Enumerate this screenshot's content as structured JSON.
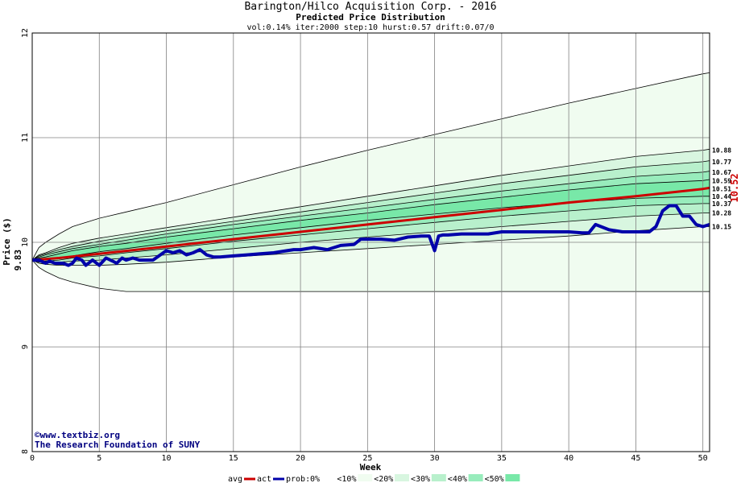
{
  "chart_data": {
    "type": "area",
    "title": "Barington/Hilco Acquisition Corp. - 2016",
    "subtitle": "Predicted Price Distribution",
    "params": "vol:0.14% iter:2000 step:10 hurst:0.57 drift:0.07/0",
    "xlabel": "Week",
    "ylabel": "Price ($)",
    "xlim": [
      0,
      50.5
    ],
    "ylim": [
      8,
      12
    ],
    "x_ticks": [
      0,
      5,
      10,
      15,
      20,
      25,
      30,
      35,
      40,
      45,
      50
    ],
    "y_ticks": [
      8,
      9,
      10,
      11,
      12
    ],
    "grid": true,
    "start_price": 9.83,
    "start_price_label": "9.83",
    "current_label": "10.52",
    "levels": [
      "10.88",
      "10.77",
      "10.67",
      "10.59",
      "10.51",
      "10.44",
      "10.37",
      "10.28",
      "10.15"
    ],
    "bands": {
      "x": [
        0,
        0.5,
        1,
        2,
        3,
        5,
        7,
        10,
        15,
        20,
        25,
        30,
        35,
        40,
        45,
        50,
        50.5
      ],
      "upper_outer": [
        9.83,
        9.95,
        10.0,
        10.08,
        10.15,
        10.23,
        10.29,
        10.38,
        10.55,
        10.72,
        10.88,
        11.03,
        11.18,
        11.33,
        11.47,
        11.61,
        11.62
      ],
      "lower_outer": [
        9.83,
        9.76,
        9.72,
        9.66,
        9.62,
        9.56,
        9.53,
        9.53,
        9.53,
        9.53,
        9.53,
        9.53,
        9.53,
        9.53,
        9.53,
        9.53,
        9.53
      ],
      "p10": [
        [
          9.83,
          9.88,
          9.9,
          9.95,
          9.99,
          10.04,
          10.08,
          10.14,
          10.24,
          10.34,
          10.44,
          10.54,
          10.64,
          10.73,
          10.82,
          10.88,
          10.89
        ],
        [
          9.83,
          9.8,
          9.79,
          9.78,
          9.78,
          9.78,
          9.79,
          9.81,
          9.86,
          9.9,
          9.94,
          9.98,
          10.02,
          10.06,
          10.11,
          10.15,
          10.15
        ]
      ],
      "p20": [
        [
          9.83,
          9.87,
          9.89,
          9.93,
          9.96,
          10.01,
          10.05,
          10.11,
          10.2,
          10.29,
          10.38,
          10.47,
          10.56,
          10.64,
          10.72,
          10.77,
          10.78
        ],
        [
          9.83,
          9.81,
          9.81,
          9.81,
          9.82,
          9.83,
          9.85,
          9.88,
          9.94,
          10.0,
          10.05,
          10.1,
          10.15,
          10.2,
          10.25,
          10.28,
          10.28
        ]
      ],
      "p30": [
        [
          9.83,
          9.86,
          9.88,
          9.91,
          9.94,
          9.98,
          10.02,
          10.08,
          10.17,
          10.25,
          10.33,
          10.41,
          10.49,
          10.56,
          10.63,
          10.67,
          10.68
        ],
        [
          9.83,
          9.82,
          9.82,
          9.83,
          9.85,
          9.87,
          9.9,
          9.94,
          10.01,
          10.07,
          10.13,
          10.19,
          10.25,
          10.3,
          10.35,
          10.37,
          10.37
        ]
      ],
      "p40": [
        [
          9.83,
          9.85,
          9.86,
          9.89,
          9.92,
          9.96,
          9.99,
          10.05,
          10.13,
          10.21,
          10.28,
          10.36,
          10.43,
          10.5,
          10.56,
          10.59,
          10.6
        ],
        [
          9.83,
          9.83,
          9.83,
          9.85,
          9.87,
          9.91,
          9.94,
          9.99,
          10.07,
          10.14,
          10.21,
          10.27,
          10.33,
          10.38,
          10.42,
          10.44,
          10.44
        ]
      ]
    },
    "series": [
      {
        "name": "avg",
        "color": "#cc0000",
        "x": [
          0,
          2,
          5,
          10,
          15,
          20,
          25,
          30,
          35,
          40,
          45,
          50,
          50.5
        ],
        "y": [
          9.83,
          9.85,
          9.89,
          9.96,
          10.03,
          10.1,
          10.17,
          10.24,
          10.31,
          10.38,
          10.44,
          10.51,
          10.52
        ]
      },
      {
        "name": "act",
        "color": "#0000aa",
        "x": [
          0,
          0.5,
          1,
          1.3,
          1.7,
          2,
          2.3,
          2.7,
          3,
          3.3,
          3.7,
          4,
          4.5,
          5,
          5.5,
          6,
          6.3,
          6.7,
          7,
          7.5,
          8,
          9,
          10,
          10.5,
          11,
          11.5,
          12,
          12.5,
          13,
          13.5,
          14,
          15,
          16,
          17,
          18,
          19,
          19.5,
          20,
          21,
          22,
          23,
          24,
          24.5,
          25,
          26,
          27,
          28,
          29,
          29.6,
          30,
          30.3,
          30.6,
          31,
          32,
          33,
          34,
          35,
          36,
          37,
          38,
          39,
          40,
          41,
          41.5,
          42,
          43,
          44,
          45,
          46,
          46.5,
          47,
          47.5,
          48,
          48.5,
          49,
          49.5,
          50,
          50.5
        ],
        "y": [
          9.83,
          9.83,
          9.8,
          9.82,
          9.8,
          9.8,
          9.8,
          9.78,
          9.8,
          9.85,
          9.83,
          9.78,
          9.83,
          9.78,
          9.85,
          9.82,
          9.8,
          9.85,
          9.83,
          9.85,
          9.83,
          9.83,
          9.92,
          9.9,
          9.92,
          9.88,
          9.9,
          9.93,
          9.88,
          9.86,
          9.86,
          9.87,
          9.88,
          9.89,
          9.9,
          9.92,
          9.93,
          9.93,
          9.95,
          9.93,
          9.97,
          9.98,
          10.03,
          10.03,
          10.03,
          10.02,
          10.05,
          10.06,
          10.06,
          9.92,
          10.06,
          10.07,
          10.07,
          10.08,
          10.08,
          10.08,
          10.1,
          10.1,
          10.1,
          10.1,
          10.1,
          10.1,
          10.09,
          10.09,
          10.17,
          10.12,
          10.1,
          10.1,
          10.1,
          10.15,
          10.3,
          10.35,
          10.35,
          10.25,
          10.25,
          10.17,
          10.15,
          10.17
        ]
      }
    ],
    "prob_legend_label": "prob:",
    "prob_legend": [
      {
        "label": "0%",
        "color": "#ffffff"
      },
      {
        "label": "<10%",
        "color": "#f0fcf0"
      },
      {
        "label": "<20%",
        "color": "#d8f6e0"
      },
      {
        "label": "<30%",
        "color": "#b8f0cc"
      },
      {
        "label": "<40%",
        "color": "#98ecbc"
      },
      {
        "label": "<50%",
        "color": "#78e8a8"
      }
    ],
    "credit": [
      "©www.textbiz.org",
      "The Research Foundation of SUNY"
    ]
  }
}
